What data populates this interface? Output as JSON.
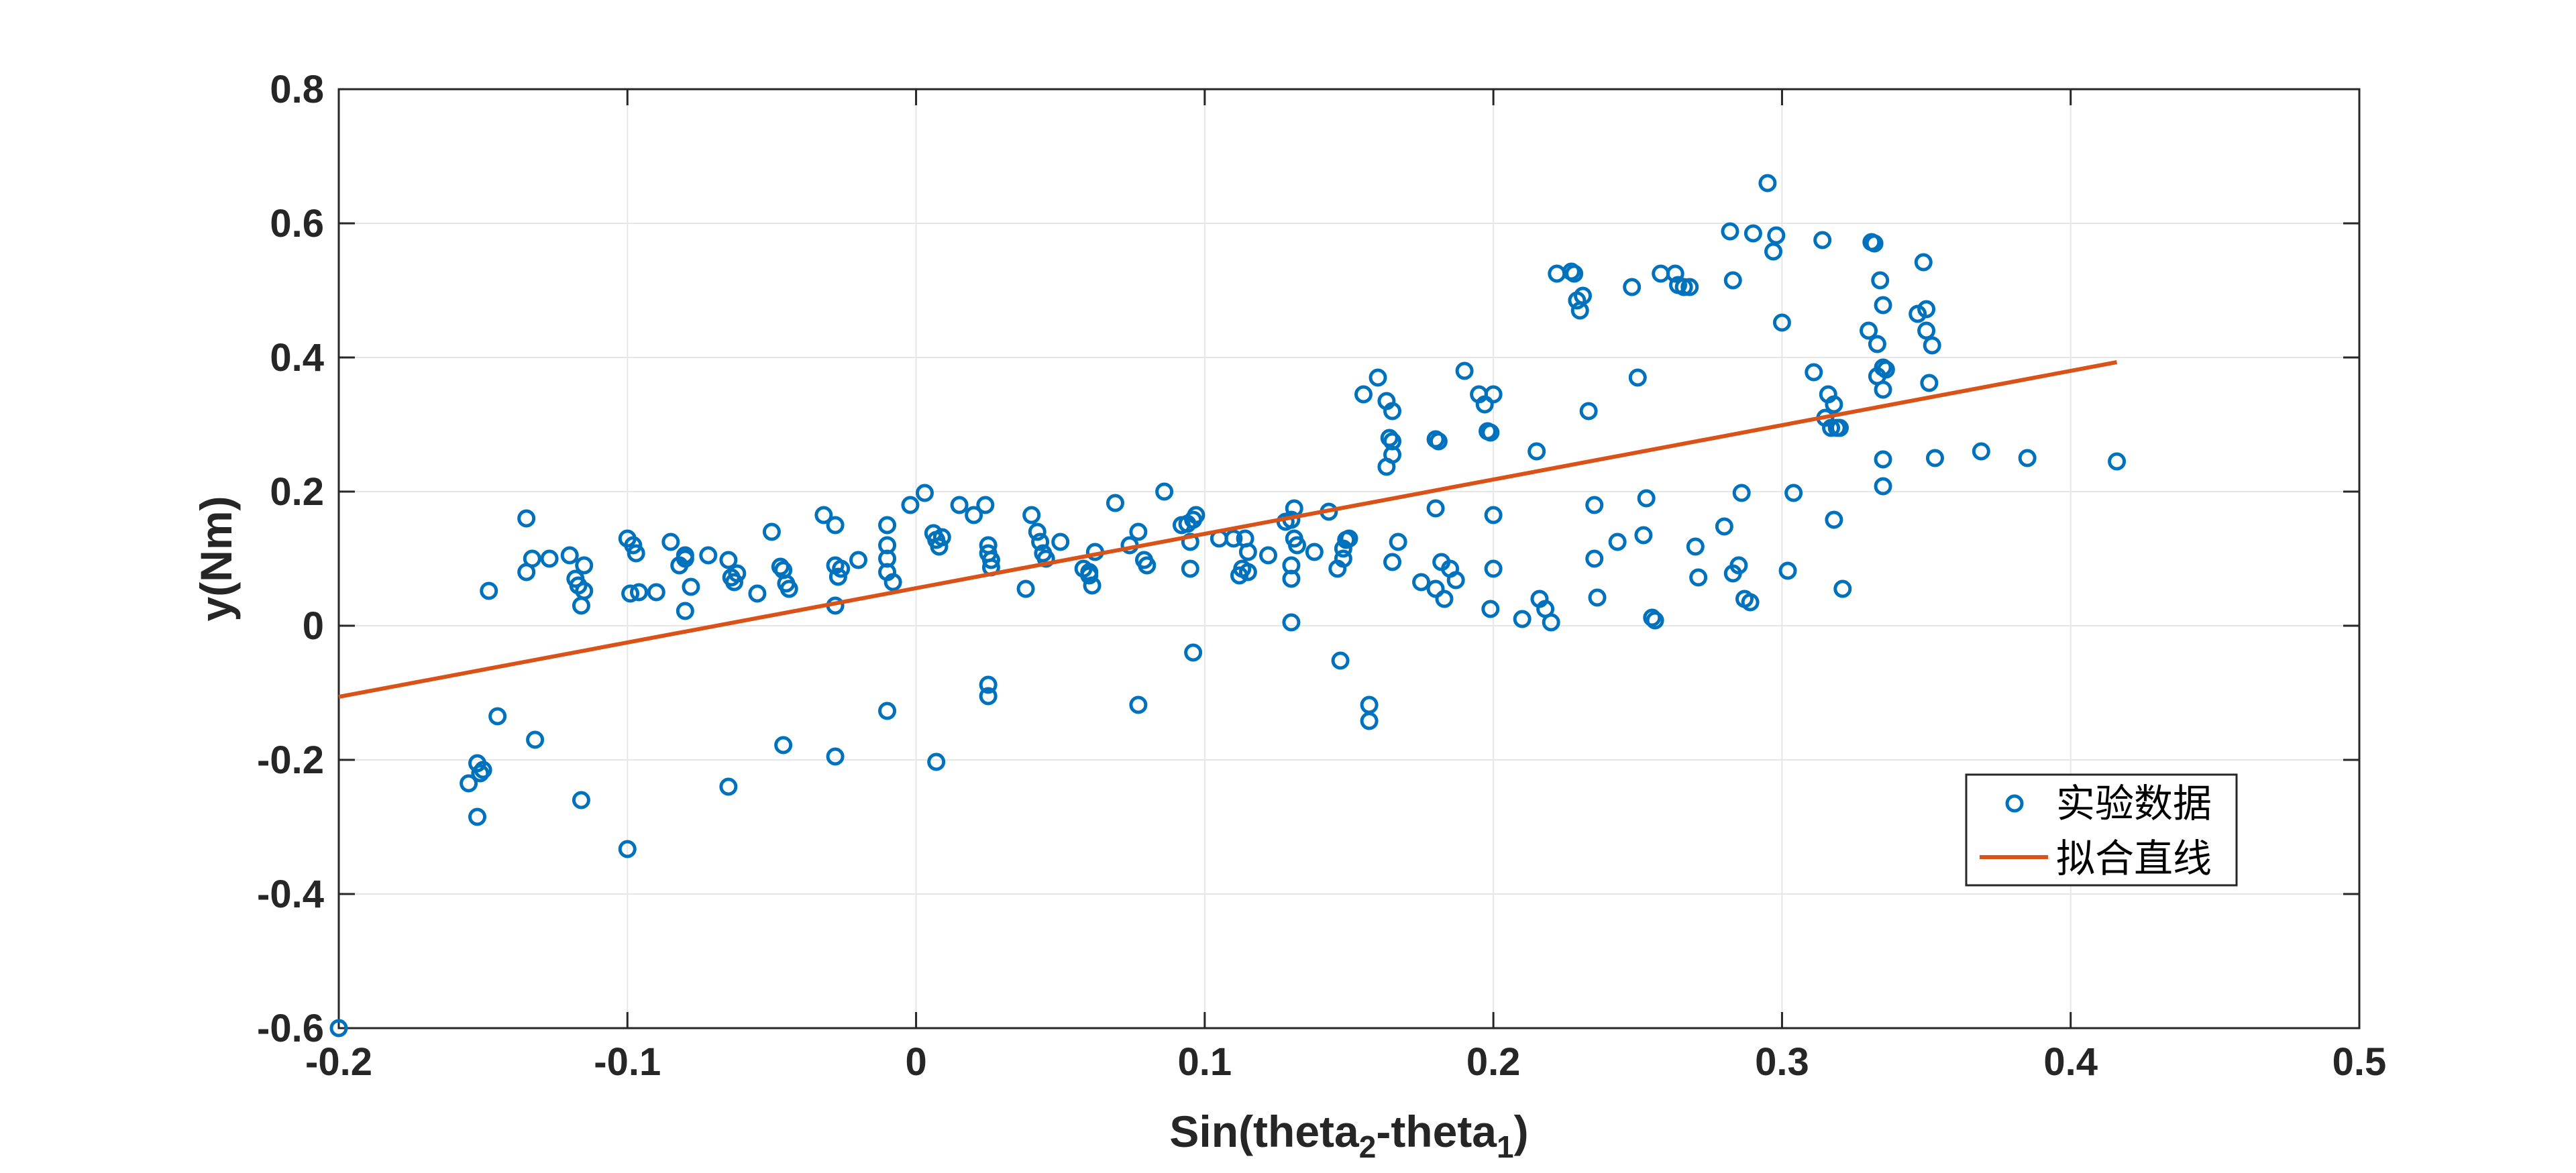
{
  "chart_data": {
    "type": "scatter",
    "xlabel": "Sin(theta2-theta1)",
    "xlabel_parts": {
      "pre": "Sin(theta",
      "sub1": "2",
      "mid": "-theta",
      "sub2": "1",
      "post": ")"
    },
    "ylabel": "y(Nm)",
    "xlim": [
      -0.2,
      0.5
    ],
    "ylim": [
      -0.6,
      0.8
    ],
    "xticks": [
      -0.2,
      -0.1,
      0,
      0.1,
      0.2,
      0.3,
      0.4,
      0.5
    ],
    "xtick_labels": [
      "-0.2",
      "-0.1",
      "0",
      "0.1",
      "0.2",
      "0.3",
      "0.4",
      "0.5"
    ],
    "yticks": [
      -0.6,
      -0.4,
      -0.2,
      0,
      0.2,
      0.4,
      0.6,
      0.8
    ],
    "ytick_labels": [
      "-0.6",
      "-0.4",
      "-0.2",
      "0",
      "0.2",
      "0.4",
      "0.6",
      "0.8"
    ],
    "grid": true,
    "legend_position": "bottom-right",
    "colors": {
      "scatter": "#0072BD",
      "fit": "#D95319",
      "axis": "#262626",
      "grid": "#e6e6e6"
    },
    "series": [
      {
        "name": "实验数据",
        "kind": "scatter",
        "marker": "open-circle",
        "points": [
          [
            -0.2,
            -0.6
          ],
          [
            -0.155,
            -0.235
          ],
          [
            -0.152,
            -0.205
          ],
          [
            -0.151,
            -0.22
          ],
          [
            -0.15,
            -0.215
          ],
          [
            -0.152,
            -0.285
          ],
          [
            -0.148,
            0.052
          ],
          [
            -0.145,
            -0.135
          ],
          [
            -0.135,
            0.16
          ],
          [
            -0.135,
            0.08
          ],
          [
            -0.133,
            0.1
          ],
          [
            -0.132,
            -0.17
          ],
          [
            -0.127,
            0.1
          ],
          [
            -0.12,
            0.105
          ],
          [
            -0.118,
            0.07
          ],
          [
            -0.117,
            0.06
          ],
          [
            -0.116,
            0.03
          ],
          [
            -0.115,
            0.09
          ],
          [
            -0.115,
            0.052
          ],
          [
            -0.116,
            -0.26
          ],
          [
            -0.1,
            0.13
          ],
          [
            -0.098,
            0.12
          ],
          [
            -0.097,
            0.108
          ],
          [
            -0.099,
            0.048
          ],
          [
            -0.096,
            0.05
          ],
          [
            -0.1,
            -0.333
          ],
          [
            -0.09,
            0.05
          ],
          [
            -0.085,
            0.125
          ],
          [
            -0.082,
            0.09
          ],
          [
            -0.08,
            0.105
          ],
          [
            -0.08,
            0.1
          ],
          [
            -0.078,
            0.058
          ],
          [
            -0.08,
            0.022
          ],
          [
            -0.072,
            0.105
          ],
          [
            -0.065,
            0.098
          ],
          [
            -0.064,
            0.072
          ],
          [
            -0.063,
            0.065
          ],
          [
            -0.062,
            0.078
          ],
          [
            -0.065,
            -0.24
          ],
          [
            -0.055,
            0.048
          ],
          [
            -0.05,
            0.14
          ],
          [
            -0.047,
            0.088
          ],
          [
            -0.046,
            0.083
          ],
          [
            -0.045,
            0.063
          ],
          [
            -0.044,
            0.055
          ],
          [
            -0.046,
            -0.178
          ],
          [
            -0.032,
            0.165
          ],
          [
            -0.028,
            0.15
          ],
          [
            -0.028,
            0.09
          ],
          [
            -0.027,
            0.073
          ],
          [
            -0.026,
            0.085
          ],
          [
            -0.028,
            0.03
          ],
          [
            -0.028,
            -0.195
          ],
          [
            -0.02,
            0.098
          ],
          [
            -0.01,
            0.15
          ],
          [
            -0.01,
            0.12
          ],
          [
            -0.01,
            0.1
          ],
          [
            -0.01,
            0.08
          ],
          [
            -0.008,
            0.065
          ],
          [
            -0.01,
            -0.127
          ],
          [
            -0.002,
            0.18
          ],
          [
            0.003,
            0.198
          ],
          [
            0.006,
            0.138
          ],
          [
            0.007,
            0.128
          ],
          [
            0.008,
            0.118
          ],
          [
            0.009,
            0.132
          ],
          [
            0.007,
            -0.203
          ],
          [
            0.015,
            0.18
          ],
          [
            0.02,
            0.165
          ],
          [
            0.024,
            0.18
          ],
          [
            0.025,
            0.12
          ],
          [
            0.025,
            0.108
          ],
          [
            0.026,
            0.098
          ],
          [
            0.026,
            0.087
          ],
          [
            0.025,
            -0.088
          ],
          [
            0.025,
            -0.105
          ],
          [
            0.038,
            0.055
          ],
          [
            0.04,
            0.165
          ],
          [
            0.042,
            0.14
          ],
          [
            0.043,
            0.125
          ],
          [
            0.044,
            0.108
          ],
          [
            0.045,
            0.1
          ],
          [
            0.05,
            0.125
          ],
          [
            0.058,
            0.085
          ],
          [
            0.06,
            0.08
          ],
          [
            0.06,
            0.075
          ],
          [
            0.061,
            0.06
          ],
          [
            0.062,
            0.11
          ],
          [
            0.069,
            0.183
          ],
          [
            0.074,
            0.12
          ],
          [
            0.077,
            0.14
          ],
          [
            0.079,
            0.098
          ],
          [
            0.08,
            0.09
          ],
          [
            0.077,
            -0.118
          ],
          [
            0.086,
            0.2
          ],
          [
            0.092,
            0.15
          ],
          [
            0.094,
            0.152
          ],
          [
            0.095,
            0.125
          ],
          [
            0.096,
            0.158
          ],
          [
            0.097,
            0.165
          ],
          [
            0.095,
            0.085
          ],
          [
            0.096,
            -0.04
          ],
          [
            0.105,
            0.13
          ],
          [
            0.11,
            0.13
          ],
          [
            0.112,
            0.075
          ],
          [
            0.113,
            0.085
          ],
          [
            0.114,
            0.13
          ],
          [
            0.115,
            0.11
          ],
          [
            0.115,
            0.08
          ],
          [
            0.122,
            0.105
          ],
          [
            0.128,
            0.155
          ],
          [
            0.13,
            0.158
          ],
          [
            0.131,
            0.175
          ],
          [
            0.131,
            0.13
          ],
          [
            0.132,
            0.12
          ],
          [
            0.13,
            0.07
          ],
          [
            0.13,
            0.09
          ],
          [
            0.13,
            0.005
          ],
          [
            0.138,
            0.11
          ],
          [
            0.143,
            0.17
          ],
          [
            0.146,
            0.085
          ],
          [
            0.148,
            0.115
          ],
          [
            0.149,
            0.128
          ],
          [
            0.15,
            0.13
          ],
          [
            0.148,
            0.1
          ],
          [
            0.147,
            -0.052
          ],
          [
            0.155,
            0.345
          ],
          [
            0.16,
            0.37
          ],
          [
            0.163,
            0.335
          ],
          [
            0.165,
            0.32
          ],
          [
            0.164,
            0.28
          ],
          [
            0.165,
            0.275
          ],
          [
            0.165,
            0.255
          ],
          [
            0.163,
            0.237
          ],
          [
            0.167,
            0.125
          ],
          [
            0.165,
            0.095
          ],
          [
            0.157,
            -0.118
          ],
          [
            0.157,
            -0.142
          ],
          [
            0.175,
            0.065
          ],
          [
            0.18,
            0.278
          ],
          [
            0.181,
            0.275
          ],
          [
            0.18,
            0.175
          ],
          [
            0.18,
            0.055
          ],
          [
            0.182,
            0.095
          ],
          [
            0.183,
            0.04
          ],
          [
            0.185,
            0.085
          ],
          [
            0.187,
            0.068
          ],
          [
            0.19,
            0.38
          ],
          [
            0.195,
            0.345
          ],
          [
            0.197,
            0.33
          ],
          [
            0.198,
            0.29
          ],
          [
            0.199,
            0.288
          ],
          [
            0.2,
            0.345
          ],
          [
            0.2,
            0.165
          ],
          [
            0.2,
            0.085
          ],
          [
            0.199,
            0.025
          ],
          [
            0.21,
            0.01
          ],
          [
            0.215,
            0.26
          ],
          [
            0.216,
            0.04
          ],
          [
            0.218,
            0.025
          ],
          [
            0.22,
            0.005
          ],
          [
            0.222,
            0.525
          ],
          [
            0.227,
            0.528
          ],
          [
            0.228,
            0.525
          ],
          [
            0.229,
            0.485
          ],
          [
            0.23,
            0.47
          ],
          [
            0.231,
            0.492
          ],
          [
            0.233,
            0.32
          ],
          [
            0.235,
            0.18
          ],
          [
            0.236,
            0.042
          ],
          [
            0.235,
            0.1
          ],
          [
            0.243,
            0.125
          ],
          [
            0.248,
            0.505
          ],
          [
            0.25,
            0.37
          ],
          [
            0.252,
            0.135
          ],
          [
            0.253,
            0.19
          ],
          [
            0.255,
            0.012
          ],
          [
            0.256,
            0.008
          ],
          [
            0.258,
            0.525
          ],
          [
            0.263,
            0.525
          ],
          [
            0.264,
            0.508
          ],
          [
            0.266,
            0.505
          ],
          [
            0.268,
            0.505
          ],
          [
            0.27,
            0.118
          ],
          [
            0.271,
            0.072
          ],
          [
            0.28,
            0.148
          ],
          [
            0.282,
            0.588
          ],
          [
            0.283,
            0.515
          ],
          [
            0.283,
            0.078
          ],
          [
            0.285,
            0.09
          ],
          [
            0.286,
            0.198
          ],
          [
            0.287,
            0.04
          ],
          [
            0.289,
            0.035
          ],
          [
            0.29,
            0.585
          ],
          [
            0.295,
            0.66
          ],
          [
            0.297,
            0.558
          ],
          [
            0.298,
            0.582
          ],
          [
            0.3,
            0.452
          ],
          [
            0.302,
            0.082
          ],
          [
            0.304,
            0.198
          ],
          [
            0.311,
            0.378
          ],
          [
            0.314,
            0.575
          ],
          [
            0.315,
            0.31
          ],
          [
            0.316,
            0.345
          ],
          [
            0.317,
            0.295
          ],
          [
            0.318,
            0.33
          ],
          [
            0.319,
            0.295
          ],
          [
            0.32,
            0.295
          ],
          [
            0.318,
            0.158
          ],
          [
            0.321,
            0.055
          ],
          [
            0.33,
            0.44
          ],
          [
            0.331,
            0.572
          ],
          [
            0.332,
            0.57
          ],
          [
            0.333,
            0.42
          ],
          [
            0.333,
            0.372
          ],
          [
            0.334,
            0.515
          ],
          [
            0.335,
            0.478
          ],
          [
            0.335,
            0.385
          ],
          [
            0.336,
            0.382
          ],
          [
            0.335,
            0.352
          ],
          [
            0.335,
            0.248
          ],
          [
            0.335,
            0.208
          ],
          [
            0.347,
            0.465
          ],
          [
            0.349,
            0.542
          ],
          [
            0.35,
            0.472
          ],
          [
            0.35,
            0.44
          ],
          [
            0.351,
            0.362
          ],
          [
            0.352,
            0.418
          ],
          [
            0.353,
            0.25
          ],
          [
            0.369,
            0.26
          ],
          [
            0.385,
            0.25
          ],
          [
            0.416,
            0.245
          ]
        ]
      },
      {
        "name": "拟合直线",
        "kind": "line",
        "x": [
          -0.2,
          0.416
        ],
        "y": [
          -0.106,
          0.393
        ]
      }
    ]
  }
}
